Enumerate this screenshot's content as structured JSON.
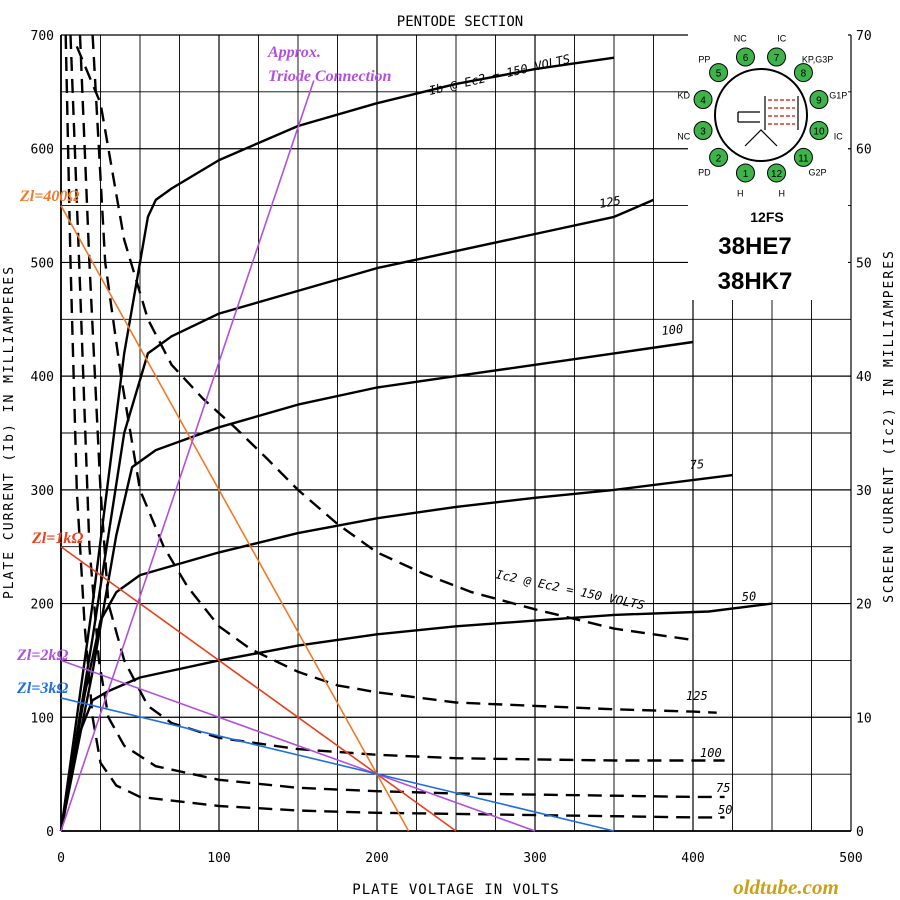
{
  "chart_data": {
    "type": "line",
    "title": "PENTODE SECTION",
    "xlabel": "PLATE VOLTAGE IN VOLTS",
    "ylabel": "PLATE CURRENT (Ib) IN MILLIAMPERES",
    "y2label": "SCREEN CURRENT (Ic2) IN MILLIAMPERES",
    "xlim": [
      0,
      500
    ],
    "ylim": [
      0,
      700
    ],
    "y2lim": [
      0,
      70
    ],
    "x_ticks": [
      "0",
      "100",
      "200",
      "300",
      "400",
      "500"
    ],
    "y_ticks": [
      "0",
      "100",
      "200",
      "300",
      "400",
      "500",
      "600",
      "700"
    ],
    "y2_ticks": [
      "0",
      "10",
      "20",
      "30",
      "40",
      "50",
      "60",
      "70"
    ],
    "grid": true,
    "plate_curves": [
      {
        "label": "Ib @ Ec2 = 150 VOLTS",
        "x": [
          0,
          20,
          40,
          55,
          60,
          70,
          100,
          150,
          200,
          250,
          300,
          350
        ],
        "y": [
          0,
          200,
          420,
          540,
          555,
          565,
          590,
          620,
          640,
          657,
          670,
          680
        ]
      },
      {
        "label": "125",
        "x": [
          0,
          20,
          40,
          55,
          70,
          100,
          150,
          200,
          250,
          300,
          350,
          375
        ],
        "y": [
          0,
          170,
          350,
          420,
          435,
          455,
          475,
          495,
          510,
          525,
          540,
          555
        ]
      },
      {
        "label": "100",
        "x": [
          0,
          20,
          35,
          45,
          60,
          100,
          150,
          200,
          250,
          300,
          350,
          400
        ],
        "y": [
          0,
          140,
          260,
          320,
          335,
          355,
          375,
          390,
          400,
          410,
          420,
          430
        ]
      },
      {
        "label": "75",
        "x": [
          0,
          15,
          25,
          35,
          50,
          100,
          150,
          200,
          250,
          300,
          350,
          425
        ],
        "y": [
          0,
          120,
          185,
          210,
          225,
          245,
          262,
          275,
          285,
          293,
          300,
          313
        ]
      },
      {
        "label": "50",
        "x": [
          0,
          10,
          20,
          30,
          50,
          100,
          150,
          200,
          250,
          300,
          350,
          410,
          450
        ],
        "y": [
          0,
          80,
          115,
          123,
          135,
          150,
          163,
          173,
          180,
          185,
          190,
          193,
          200
        ]
      }
    ],
    "screen_curves": [
      {
        "label": "Ic2 @ Ec2 = 150 VOLTS",
        "x": [
          10,
          25,
          40,
          55,
          70,
          90,
          110,
          130,
          150,
          175,
          200,
          230,
          260,
          300,
          350,
          400
        ],
        "y": [
          690,
          640,
          520,
          450,
          410,
          380,
          355,
          328,
          300,
          270,
          245,
          226,
          210,
          195,
          178,
          168
        ]
      },
      {
        "label": "125",
        "x": [
          20,
          28,
          38,
          50,
          65,
          80,
          100,
          120,
          150,
          175,
          200,
          250,
          300,
          350,
          400,
          415
        ],
        "y": [
          700,
          500,
          400,
          300,
          250,
          215,
          180,
          160,
          140,
          128,
          122,
          113,
          110,
          107,
          105,
          104
        ]
      },
      {
        "label": "100",
        "x": [
          12,
          18,
          25,
          30,
          40,
          55,
          70,
          100,
          150,
          200,
          250,
          300,
          350,
          400,
          420
        ],
        "y": [
          700,
          500,
          300,
          200,
          150,
          110,
          95,
          82,
          72,
          67,
          64,
          63,
          62,
          62,
          62
        ]
      },
      {
        "label": "75",
        "x": [
          6,
          12,
          18,
          24,
          30,
          40,
          60,
          100,
          150,
          200,
          250,
          300,
          350,
          400,
          420
        ],
        "y": [
          700,
          480,
          250,
          150,
          100,
          75,
          57,
          45,
          38,
          35,
          33,
          32,
          31,
          30,
          30
        ]
      },
      {
        "label": "50",
        "x": [
          3,
          6,
          10,
          15,
          20,
          25,
          35,
          50,
          100,
          150,
          200,
          250,
          300,
          350,
          400,
          420
        ],
        "y": [
          700,
          500,
          300,
          180,
          100,
          60,
          40,
          30,
          22,
          18,
          16,
          15,
          14,
          13,
          12,
          12
        ]
      }
    ],
    "load_lines": [
      {
        "label": "Zl=400Ω",
        "color": "#f07a2a",
        "x": [
          0,
          220
        ],
        "y": [
          550,
          0
        ]
      },
      {
        "label": "Zl=1kΩ",
        "color": "#e8401c",
        "x": [
          0,
          250
        ],
        "y": [
          250,
          0
        ]
      },
      {
        "label": "Zl=2kΩ",
        "color": "#b34fe0",
        "x": [
          0,
          300
        ],
        "y": [
          150,
          0
        ]
      },
      {
        "label": "Zl=3kΩ",
        "color": "#1f6fe0",
        "x": [
          0,
          350
        ],
        "y": [
          117,
          0
        ]
      }
    ],
    "triode_line": {
      "label_line1": "Approx.",
      "label_line2": "Triode Connection",
      "color": "#b34fe0",
      "x": [
        0,
        160
      ],
      "y": [
        0,
        660
      ]
    }
  },
  "base_diagram": {
    "base_type": "12FS",
    "pins": [
      {
        "num": "1",
        "label": "H"
      },
      {
        "num": "2",
        "label": "PD"
      },
      {
        "num": "3",
        "label": "NC"
      },
      {
        "num": "4",
        "label": "KD"
      },
      {
        "num": "5",
        "label": "PP"
      },
      {
        "num": "6",
        "label": "NC"
      },
      {
        "num": "7",
        "label": "IC"
      },
      {
        "num": "8",
        "label": "KP,G3P"
      },
      {
        "num": "9",
        "label": "G1P"
      },
      {
        "num": "10",
        "label": "IC"
      },
      {
        "num": "11",
        "label": "G2P"
      },
      {
        "num": "12",
        "label": "H"
      }
    ],
    "pin_color": "#3db34a"
  },
  "tube_names": [
    "38HE7",
    "38HK7"
  ],
  "watermark": "oldtube.com"
}
